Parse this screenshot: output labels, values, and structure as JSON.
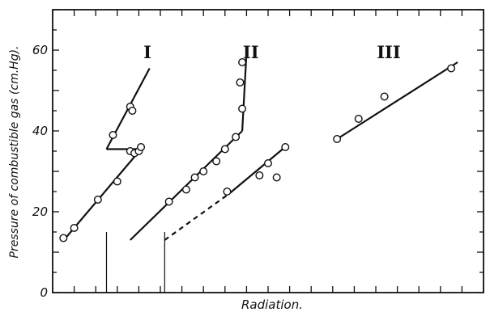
{
  "chart_data": {
    "type": "scatter",
    "title": "",
    "xlabel": "Radiation.",
    "ylabel": "Pressure of combustible gas (cm.Hg).",
    "ylim": [
      0,
      70
    ],
    "xlim": [
      0,
      100
    ],
    "grid": false,
    "y_ticks": [
      "0",
      "20",
      "40",
      "60"
    ],
    "curve_labels": [
      {
        "text": "I",
        "x": 22,
        "y": 58
      },
      {
        "text": "II",
        "x": 46,
        "y": 58
      },
      {
        "text": "III",
        "x": 78,
        "y": 58
      }
    ],
    "series": [
      {
        "name": "I",
        "points": [
          [
            2.5,
            13.5
          ],
          [
            5,
            16
          ],
          [
            10.5,
            23
          ],
          [
            15,
            27.5
          ],
          [
            18,
            35
          ],
          [
            19,
            34.5
          ],
          [
            20,
            35
          ],
          [
            20.5,
            36
          ],
          [
            18,
            46
          ],
          [
            18.5,
            45
          ],
          [
            14,
            39
          ]
        ],
        "lines": [
          {
            "style": "solid",
            "points": [
              [
                3,
                13.5
              ],
              [
                20.5,
                35.5
              ]
            ]
          },
          {
            "style": "solid",
            "points": [
              [
                12.5,
                35.5
              ],
              [
                20.5,
                35.5
              ]
            ]
          },
          {
            "style": "solid",
            "points": [
              [
                12.5,
                35.5
              ],
              [
                22.5,
                55.5
              ]
            ]
          }
        ]
      },
      {
        "name": "II",
        "points": [
          [
            27,
            22.5
          ],
          [
            31,
            25.5
          ],
          [
            33,
            28.5
          ],
          [
            35,
            30
          ],
          [
            38,
            32.5
          ],
          [
            40,
            35.5
          ],
          [
            42.5,
            38.5
          ],
          [
            44,
            45.5
          ],
          [
            43.5,
            52
          ],
          [
            44,
            57
          ],
          [
            40.5,
            25
          ],
          [
            48,
            29
          ],
          [
            50,
            32
          ],
          [
            52,
            28.5
          ],
          [
            54,
            36
          ]
        ],
        "lines": [
          {
            "style": "solid",
            "points": [
              [
                18,
                13
              ],
              [
                44,
                40
              ]
            ]
          },
          {
            "style": "solid",
            "points": [
              [
                44,
                40
              ],
              [
                45,
                59.5
              ]
            ]
          },
          {
            "style": "solid",
            "points": [
              [
                41,
                24.5
              ],
              [
                54.5,
                36.5
              ]
            ]
          },
          {
            "style": "dashed",
            "points": [
              [
                26,
                13
              ],
              [
                41,
                24.5
              ]
            ]
          }
        ]
      },
      {
        "name": "III",
        "points": [
          [
            66,
            38
          ],
          [
            71,
            43
          ],
          [
            77,
            48.5
          ],
          [
            92.5,
            55.5
          ]
        ],
        "lines": [
          {
            "style": "solid",
            "points": [
              [
                66,
                38
              ],
              [
                94,
                57
              ]
            ]
          }
        ]
      }
    ],
    "reference_marks": [
      {
        "x": 12.5,
        "y_top": 15
      },
      {
        "x": 26,
        "y_top": 15
      }
    ]
  }
}
